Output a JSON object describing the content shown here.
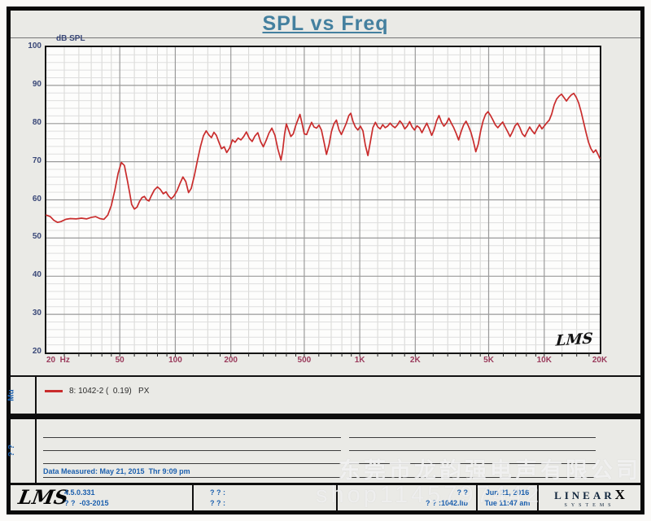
{
  "title": {
    "text": "SPL vs Freq",
    "color": "#44809f"
  },
  "chart": {
    "y_axis_label": "dB SPL",
    "plot_mark": "LMS"
  },
  "chart_data": {
    "type": "line",
    "title": "SPL vs Freq",
    "xlabel": "Frequency",
    "ylabel": "dB SPL",
    "x_scale": "log",
    "xlim": [
      20,
      20000
    ],
    "ylim": [
      20,
      100
    ],
    "y_major_step": 10,
    "y_minor_step": 2,
    "grid": "on",
    "legend_position": "below",
    "x_ticks": [
      {
        "f": 20,
        "label": "20  Hz"
      },
      {
        "f": 50,
        "label": "50"
      },
      {
        "f": 100,
        "label": "100"
      },
      {
        "f": 200,
        "label": "200"
      },
      {
        "f": 500,
        "label": "500"
      },
      {
        "f": 1000,
        "label": "1K"
      },
      {
        "f": 2000,
        "label": "2K"
      },
      {
        "f": 5000,
        "label": "5K"
      },
      {
        "f": 10000,
        "label": "10K"
      },
      {
        "f": 20000,
        "label": "20K"
      }
    ],
    "y_ticks": [
      100,
      90,
      80,
      70,
      60,
      50,
      40,
      30,
      20
    ],
    "series": [
      {
        "name": "8: 1042-2 (  0.19)   PX",
        "color": "#c92c2c",
        "points": [
          [
            20,
            56
          ],
          [
            21,
            55.6
          ],
          [
            22,
            54.6
          ],
          [
            23,
            54.1
          ],
          [
            24,
            54.3
          ],
          [
            25.5,
            54.9
          ],
          [
            27,
            55.1
          ],
          [
            29,
            55
          ],
          [
            31,
            55.2
          ],
          [
            33,
            55
          ],
          [
            35,
            55.4
          ],
          [
            37,
            55.6
          ],
          [
            39,
            55.1
          ],
          [
            41,
            54.9
          ],
          [
            43,
            56
          ],
          [
            45,
            58.5
          ],
          [
            47,
            62.5
          ],
          [
            49,
            67
          ],
          [
            51,
            69.8
          ],
          [
            53,
            69
          ],
          [
            55,
            65
          ],
          [
            56.5,
            62
          ],
          [
            58,
            58.8
          ],
          [
            60,
            57.6
          ],
          [
            62,
            58.1
          ],
          [
            64,
            59.6
          ],
          [
            66,
            60.6
          ],
          [
            68,
            60.9
          ],
          [
            70,
            60
          ],
          [
            72,
            59.7
          ],
          [
            74,
            61
          ],
          [
            77,
            62.6
          ],
          [
            80,
            63.4
          ],
          [
            83,
            62.7
          ],
          [
            86,
            61.6
          ],
          [
            89,
            62.1
          ],
          [
            92,
            61
          ],
          [
            95,
            60.3
          ],
          [
            98,
            60.9
          ],
          [
            102,
            62.3
          ],
          [
            106,
            64.3
          ],
          [
            110,
            66
          ],
          [
            114,
            64.8
          ],
          [
            118,
            61.9
          ],
          [
            122,
            63
          ],
          [
            127,
            66.5
          ],
          [
            132,
            70.5
          ],
          [
            137,
            74
          ],
          [
            142,
            76.8
          ],
          [
            147,
            78.1
          ],
          [
            152,
            77
          ],
          [
            157,
            76.3
          ],
          [
            162,
            77.7
          ],
          [
            167,
            76.9
          ],
          [
            172,
            75.2
          ],
          [
            178,
            73.4
          ],
          [
            184,
            73.9
          ],
          [
            190,
            72.4
          ],
          [
            197,
            73.6
          ],
          [
            204,
            75.7
          ],
          [
            211,
            75.1
          ],
          [
            219,
            76.2
          ],
          [
            227,
            75.7
          ],
          [
            235,
            76.6
          ],
          [
            243,
            77.8
          ],
          [
            252,
            76.1
          ],
          [
            261,
            75.3
          ],
          [
            270,
            76.7
          ],
          [
            280,
            77.6
          ],
          [
            290,
            75.3
          ],
          [
            300,
            73.9
          ],
          [
            311,
            75.6
          ],
          [
            322,
            77.5
          ],
          [
            334,
            78.8
          ],
          [
            347,
            76.9
          ],
          [
            360,
            73.3
          ],
          [
            374,
            70.4
          ],
          [
            382,
            72.9
          ],
          [
            391,
            77.2
          ],
          [
            400,
            79.9
          ],
          [
            411,
            78.3
          ],
          [
            423,
            76.6
          ],
          [
            436,
            77.3
          ],
          [
            449,
            79.4
          ],
          [
            463,
            81.1
          ],
          [
            474,
            82.4
          ],
          [
            487,
            79.9
          ],
          [
            500,
            77.3
          ],
          [
            515,
            77.1
          ],
          [
            531,
            78.8
          ],
          [
            548,
            80.3
          ],
          [
            565,
            79.1
          ],
          [
            583,
            78.8
          ],
          [
            601,
            79.6
          ],
          [
            620,
            78.3
          ],
          [
            640,
            75.1
          ],
          [
            660,
            71.9
          ],
          [
            681,
            74.4
          ],
          [
            702,
            77.9
          ],
          [
            724,
            79.9
          ],
          [
            747,
            80.9
          ],
          [
            771,
            78.4
          ],
          [
            795,
            77.1
          ],
          [
            820,
            78.6
          ],
          [
            846,
            80.1
          ],
          [
            873,
            82.1
          ],
          [
            894,
            82.7
          ],
          [
            918,
            80.6
          ],
          [
            947,
            79.1
          ],
          [
            977,
            78.3
          ],
          [
            1008,
            79.3
          ],
          [
            1040,
            78.1
          ],
          [
            1073,
            74.3
          ],
          [
            1107,
            71.6
          ],
          [
            1142,
            75.3
          ],
          [
            1178,
            78.9
          ],
          [
            1215,
            80.3
          ],
          [
            1253,
            79.1
          ],
          [
            1292,
            78.6
          ],
          [
            1332,
            79.7
          ],
          [
            1373,
            78.9
          ],
          [
            1416,
            79.3
          ],
          [
            1460,
            80.1
          ],
          [
            1505,
            79.4
          ],
          [
            1552,
            78.9
          ],
          [
            1600,
            79.6
          ],
          [
            1650,
            80.7
          ],
          [
            1701,
            79.9
          ],
          [
            1754,
            78.6
          ],
          [
            1808,
            79.3
          ],
          [
            1864,
            80.5
          ],
          [
            1922,
            79.1
          ],
          [
            1982,
            78.3
          ],
          [
            2043,
            79.4
          ],
          [
            2107,
            78.9
          ],
          [
            2172,
            77.6
          ],
          [
            2240,
            78.9
          ],
          [
            2309,
            80.1
          ],
          [
            2381,
            78.6
          ],
          [
            2455,
            76.9
          ],
          [
            2531,
            78.4
          ],
          [
            2610,
            80.7
          ],
          [
            2691,
            82.1
          ],
          [
            2774,
            80.4
          ],
          [
            2860,
            79.3
          ],
          [
            2949,
            80.1
          ],
          [
            3041,
            81.4
          ],
          [
            3135,
            80.1
          ],
          [
            3233,
            78.9
          ],
          [
            3333,
            77.4
          ],
          [
            3437,
            75.7
          ],
          [
            3544,
            77.9
          ],
          [
            3654,
            79.6
          ],
          [
            3767,
            80.6
          ],
          [
            3884,
            79.3
          ],
          [
            4005,
            77.7
          ],
          [
            4129,
            75.4
          ],
          [
            4257,
            72.6
          ],
          [
            4389,
            74.6
          ],
          [
            4526,
            78.1
          ],
          [
            4666,
            80.7
          ],
          [
            4811,
            82.4
          ],
          [
            4960,
            83.1
          ],
          [
            5114,
            82.1
          ],
          [
            5273,
            80.9
          ],
          [
            5437,
            79.6
          ],
          [
            5606,
            78.9
          ],
          [
            5780,
            79.7
          ],
          [
            5959,
            80.4
          ],
          [
            6144,
            79.1
          ],
          [
            6335,
            77.9
          ],
          [
            6532,
            76.6
          ],
          [
            6735,
            77.9
          ],
          [
            6944,
            79.4
          ],
          [
            7159,
            80.1
          ],
          [
            7382,
            78.9
          ],
          [
            7611,
            77.3
          ],
          [
            7847,
            76.6
          ],
          [
            8091,
            77.9
          ],
          [
            8342,
            79.1
          ],
          [
            8601,
            78.1
          ],
          [
            8868,
            77.3
          ],
          [
            9144,
            78.6
          ],
          [
            9428,
            79.7
          ],
          [
            9721,
            78.6
          ],
          [
            10023,
            79.4
          ],
          [
            10334,
            80.2
          ],
          [
            10655,
            80.9
          ],
          [
            10986,
            82.5
          ],
          [
            11327,
            84.9
          ],
          [
            11679,
            86.4
          ],
          [
            12042,
            87.2
          ],
          [
            12416,
            87.7
          ],
          [
            12801,
            86.8
          ],
          [
            13199,
            85.9
          ],
          [
            13609,
            86.8
          ],
          [
            14031,
            87.5
          ],
          [
            14467,
            87.9
          ],
          [
            14916,
            86.9
          ],
          [
            15379,
            85.4
          ],
          [
            15857,
            83.1
          ],
          [
            16349,
            80.3
          ],
          [
            16857,
            77.6
          ],
          [
            17380,
            75.1
          ],
          [
            17920,
            73.4
          ],
          [
            18476,
            72.4
          ],
          [
            19050,
            73.1
          ],
          [
            19641,
            71.8
          ],
          [
            20000,
            70.9
          ]
        ]
      }
    ]
  },
  "legend": {
    "side_label": "Mu",
    "entries": [
      {
        "label": "8: 1042-2 (  0.19)   PX",
        "color": "#c92c2c"
      }
    ]
  },
  "notes": {
    "side_label": "? ?",
    "data_measured": "Data Measured: May 21, 2015  Thr 9:09 pm"
  },
  "status_bar": {
    "lms_logo": "LMS",
    "version": "4.5.0.331",
    "version_date": "? ?  -03-2015",
    "cell2_line1": "? ? :",
    "cell2_line2": "? ? :",
    "cell3_line1": "? ?",
    "cell3_line2": "? ? :1042.lib",
    "date": "Jun 21, 2016",
    "time": "Tue 11:47 am",
    "brand_name": "LINEAR",
    "brand_x": "X",
    "brand_sub": "SYSTEMS"
  },
  "watermarks": {
    "company": "东莞市龙韵强电声有限公司",
    "shop": "shop1145797442"
  },
  "colors": {
    "curve": "#c92c2c",
    "grid_minor": "#d6d6d4",
    "grid_major": "#9a9a9a",
    "x_label": "#9a3b5c",
    "y_label": "#3a4878",
    "blue_text": "#1b5fae",
    "title": "#44809f"
  }
}
